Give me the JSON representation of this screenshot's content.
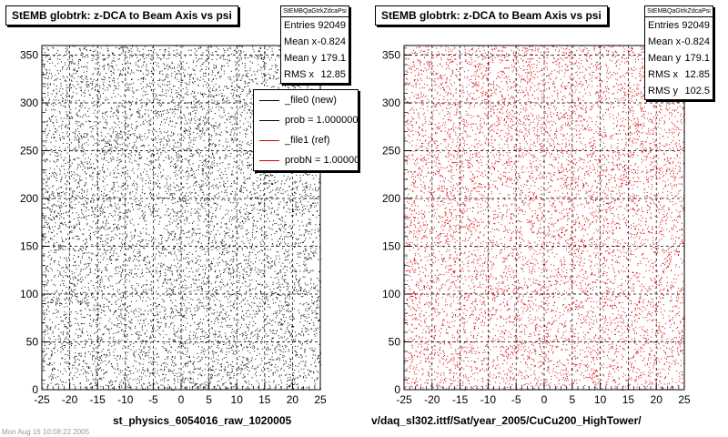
{
  "colors": {
    "left_points": "#000000",
    "right_points": "#d40000",
    "legend_ref": "#d40000"
  },
  "chart_data": [
    {
      "type": "scatter",
      "title": "StEMB globtrk: z-DCA to Beam Axis vs psi",
      "xlabel": "",
      "ylabel": "",
      "xlim": [
        -25,
        25
      ],
      "ylim": [
        0,
        360
      ],
      "xticks": [
        "-25",
        "-20",
        "-15",
        "-10",
        "-5",
        "0",
        "5",
        "10",
        "15",
        "20",
        "25"
      ],
      "yticks": [
        "0",
        "50",
        "100",
        "150",
        "200",
        "250",
        "300",
        "350"
      ],
      "grid": true,
      "caption": "st_physics_6054016_raw_1020005",
      "stats": {
        "name": "StEMBQaGtrkZdcaPsi",
        "rows": [
          {
            "label": "Entries",
            "value": "92049"
          },
          {
            "label": "Mean x",
            "value": "-0.824"
          },
          {
            "label": "Mean y",
            "value": "179.1"
          },
          {
            "label": "RMS x",
            "value": "12.85"
          }
        ]
      },
      "legend": {
        "placement": "top-right",
        "entries": [
          {
            "label": "_file0 (new)",
            "color": "#000000"
          },
          {
            "label": "prob = 1.000000",
            "color": "#000000"
          },
          {
            "label": "_file1 (ref)",
            "color": "#d40000"
          },
          {
            "label": "probN = 1.000000",
            "color": "#d40000"
          }
        ]
      },
      "point_color": "#000000",
      "density": "uniform",
      "n_rendered_points": 9000
    },
    {
      "type": "scatter",
      "title": "StEMB globtrk: z-DCA to Beam Axis vs psi",
      "xlabel": "",
      "ylabel": "",
      "xlim": [
        -25,
        25
      ],
      "ylim": [
        0,
        360
      ],
      "xticks": [
        "-25",
        "-20",
        "-15",
        "-10",
        "-5",
        "0",
        "5",
        "10",
        "15",
        "20",
        "25"
      ],
      "yticks": [
        "0",
        "50",
        "100",
        "150",
        "200",
        "250",
        "300",
        "350"
      ],
      "grid": true,
      "caption": "v/daq_sl302.ittf/Sat/year_2005/CuCu200_HighTower/",
      "stats": {
        "name": "StEMBQaGtrkZdcaPsi",
        "rows": [
          {
            "label": "Entries",
            "value": "92049"
          },
          {
            "label": "Mean x",
            "value": "-0.824"
          },
          {
            "label": "Mean y",
            "value": "179.1"
          },
          {
            "label": "RMS x",
            "value": "12.85"
          },
          {
            "label": "RMS y",
            "value": "102.5"
          }
        ]
      },
      "point_color": "#d40000",
      "density": "uniform",
      "n_rendered_points": 9000
    }
  ],
  "footer_faint": "Mon Aug 16 10:08:22 2005"
}
